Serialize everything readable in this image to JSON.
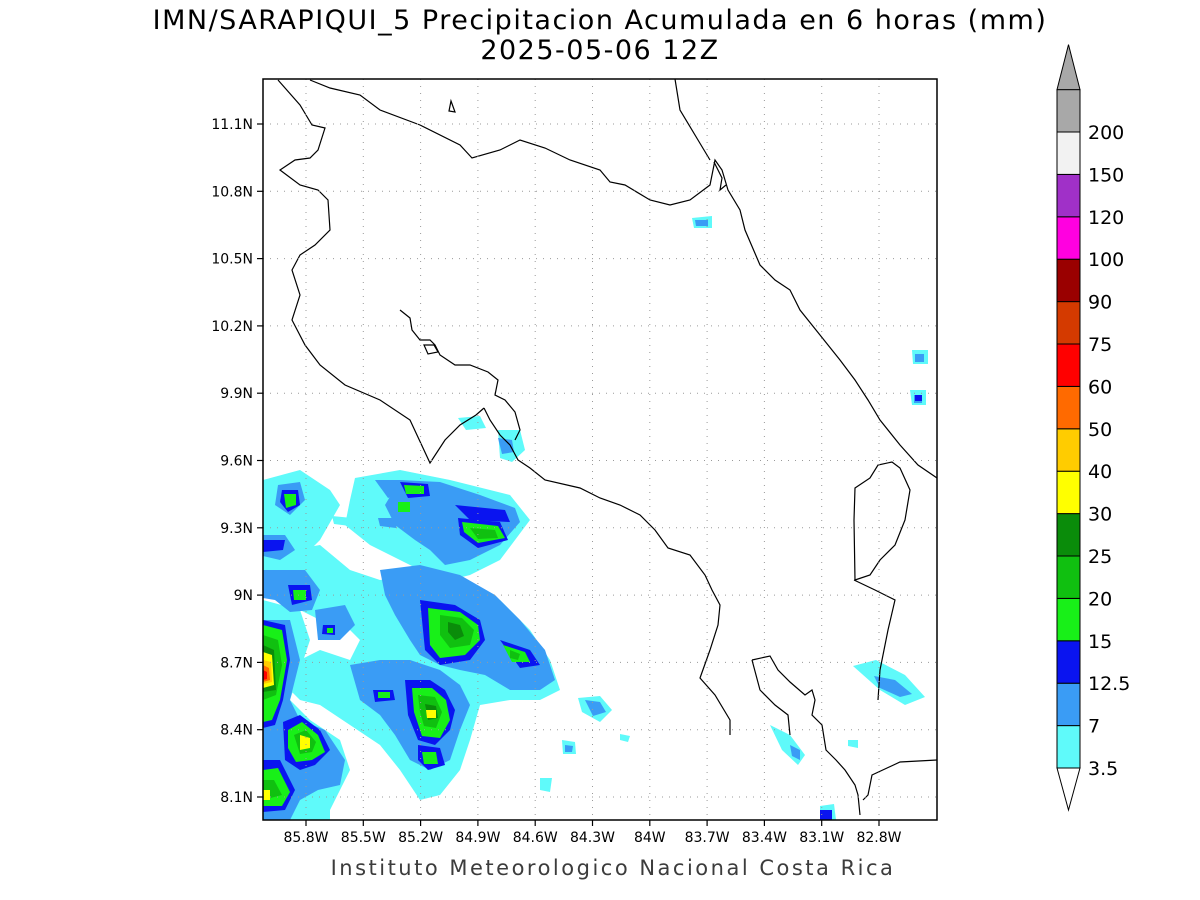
{
  "title": {
    "line1": "IMN/SARAPIQUI_5 Precipitacion Acumulada en 6 horas (mm)",
    "line2": "2025-05-06 12Z"
  },
  "footer": {
    "credit": "Instituto Meteorologico Nacional Costa Rica"
  },
  "map": {
    "latitude_ticks": [
      "11.1N",
      "10.8N",
      "10.5N",
      "10.2N",
      "9.9N",
      "9.6N",
      "9.3N",
      "9N",
      "8.7N",
      "8.4N",
      "8.1N"
    ],
    "longitude_ticks": [
      "85.8W",
      "85.5W",
      "85.2W",
      "84.9W",
      "84.6W",
      "84.3W",
      "84W",
      "83.7W",
      "83.4W",
      "83.1W",
      "82.8W"
    ],
    "grid": "dotted",
    "lat_range": [
      8.0,
      11.3
    ],
    "lon_range": [
      -86.0,
      -82.5
    ]
  },
  "colorbar": {
    "levels": [
      "3.5",
      "7",
      "12.5",
      "15",
      "20",
      "25",
      "30",
      "40",
      "50",
      "60",
      "75",
      "90",
      "100",
      "120",
      "150",
      "200"
    ],
    "colors": [
      "#5ffafa",
      "#3a9cf5",
      "#0a14f0",
      "#18f018",
      "#10c010",
      "#0a8c0a",
      "#ffff00",
      "#ffcc00",
      "#ff6a00",
      "#ff0000",
      "#d43a00",
      "#9a0000",
      "#ff00e0",
      "#a030c8",
      "#f2f2f2",
      "#a8a8a8"
    ],
    "under_color": "#ffffff",
    "over_color": "#a8a8a8"
  },
  "icons": {
    "colorbar_top": "triangle-up",
    "colorbar_bottom": "triangle-down"
  }
}
